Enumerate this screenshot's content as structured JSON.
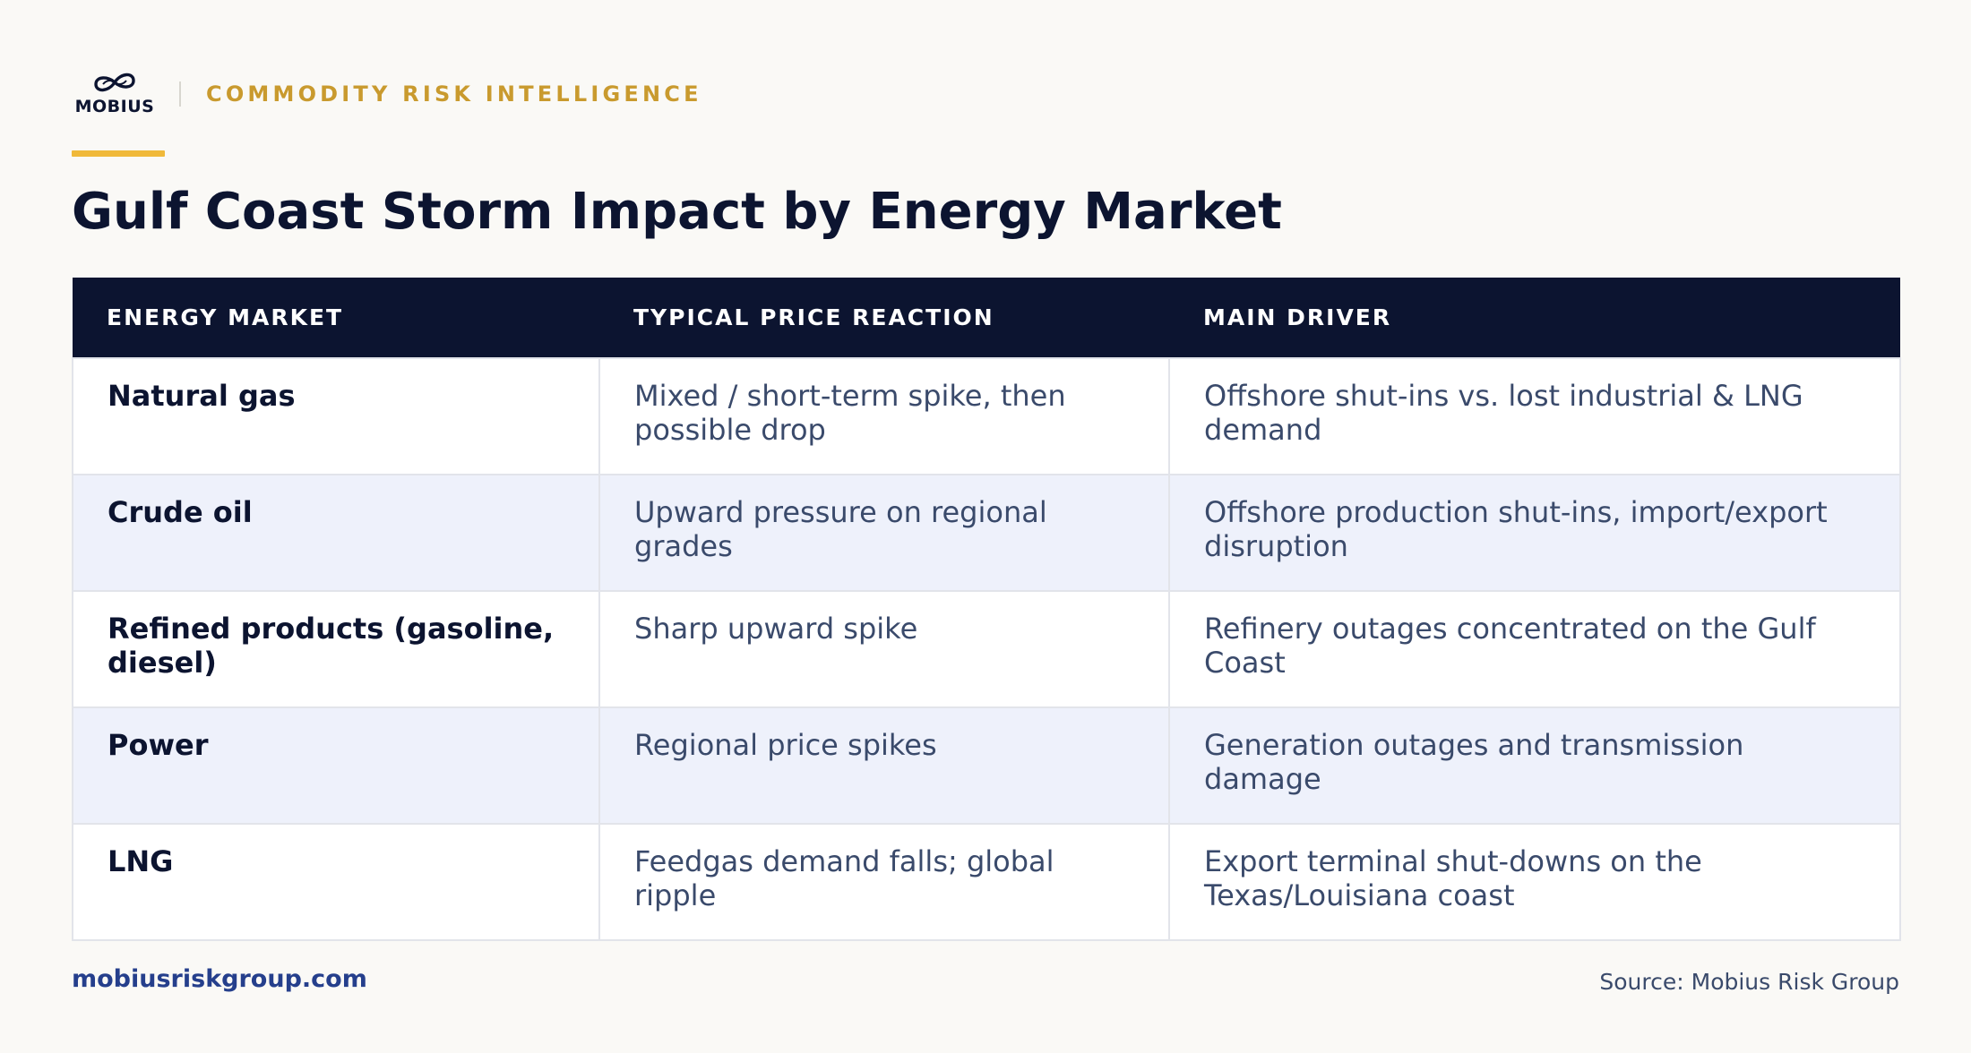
{
  "header": {
    "logo_text": "MOBIUS",
    "tagline": "COMMODITY RISK INTELLIGENCE"
  },
  "title": "Gulf Coast Storm Impact by Energy Market",
  "table": {
    "columns": [
      "ENERGY MARKET",
      "TYPICAL PRICE REACTION",
      "MAIN DRIVER"
    ],
    "rows": [
      {
        "market": "Natural gas",
        "reaction": "Mixed / short-term spike, then possible drop",
        "driver": "Offshore shut-ins vs. lost industrial & LNG demand"
      },
      {
        "market": "Crude oil",
        "reaction": "Upward pressure on regional grades",
        "driver": "Offshore production shut-ins, import/export disruption"
      },
      {
        "market": "Refined products (gasoline, diesel)",
        "reaction": "Sharp upward spike",
        "driver": "Refinery outages concentrated on the Gulf Coast"
      },
      {
        "market": "Power",
        "reaction": "Regional price spikes",
        "driver": "Generation outages and transmission damage"
      },
      {
        "market": "LNG",
        "reaction": "Feedgas demand falls; global ripple",
        "driver": "Export terminal shut-downs on the Texas/Louisiana coast"
      }
    ]
  },
  "footer": {
    "website": "mobiusriskgroup.com",
    "source": "Source: Mobius Risk Group"
  },
  "colors": {
    "navy": "#0c1430",
    "gold": "#c99a2e",
    "accent_bar": "#f0b93a",
    "row_alt": "#eef1fb",
    "link": "#253f8c"
  }
}
